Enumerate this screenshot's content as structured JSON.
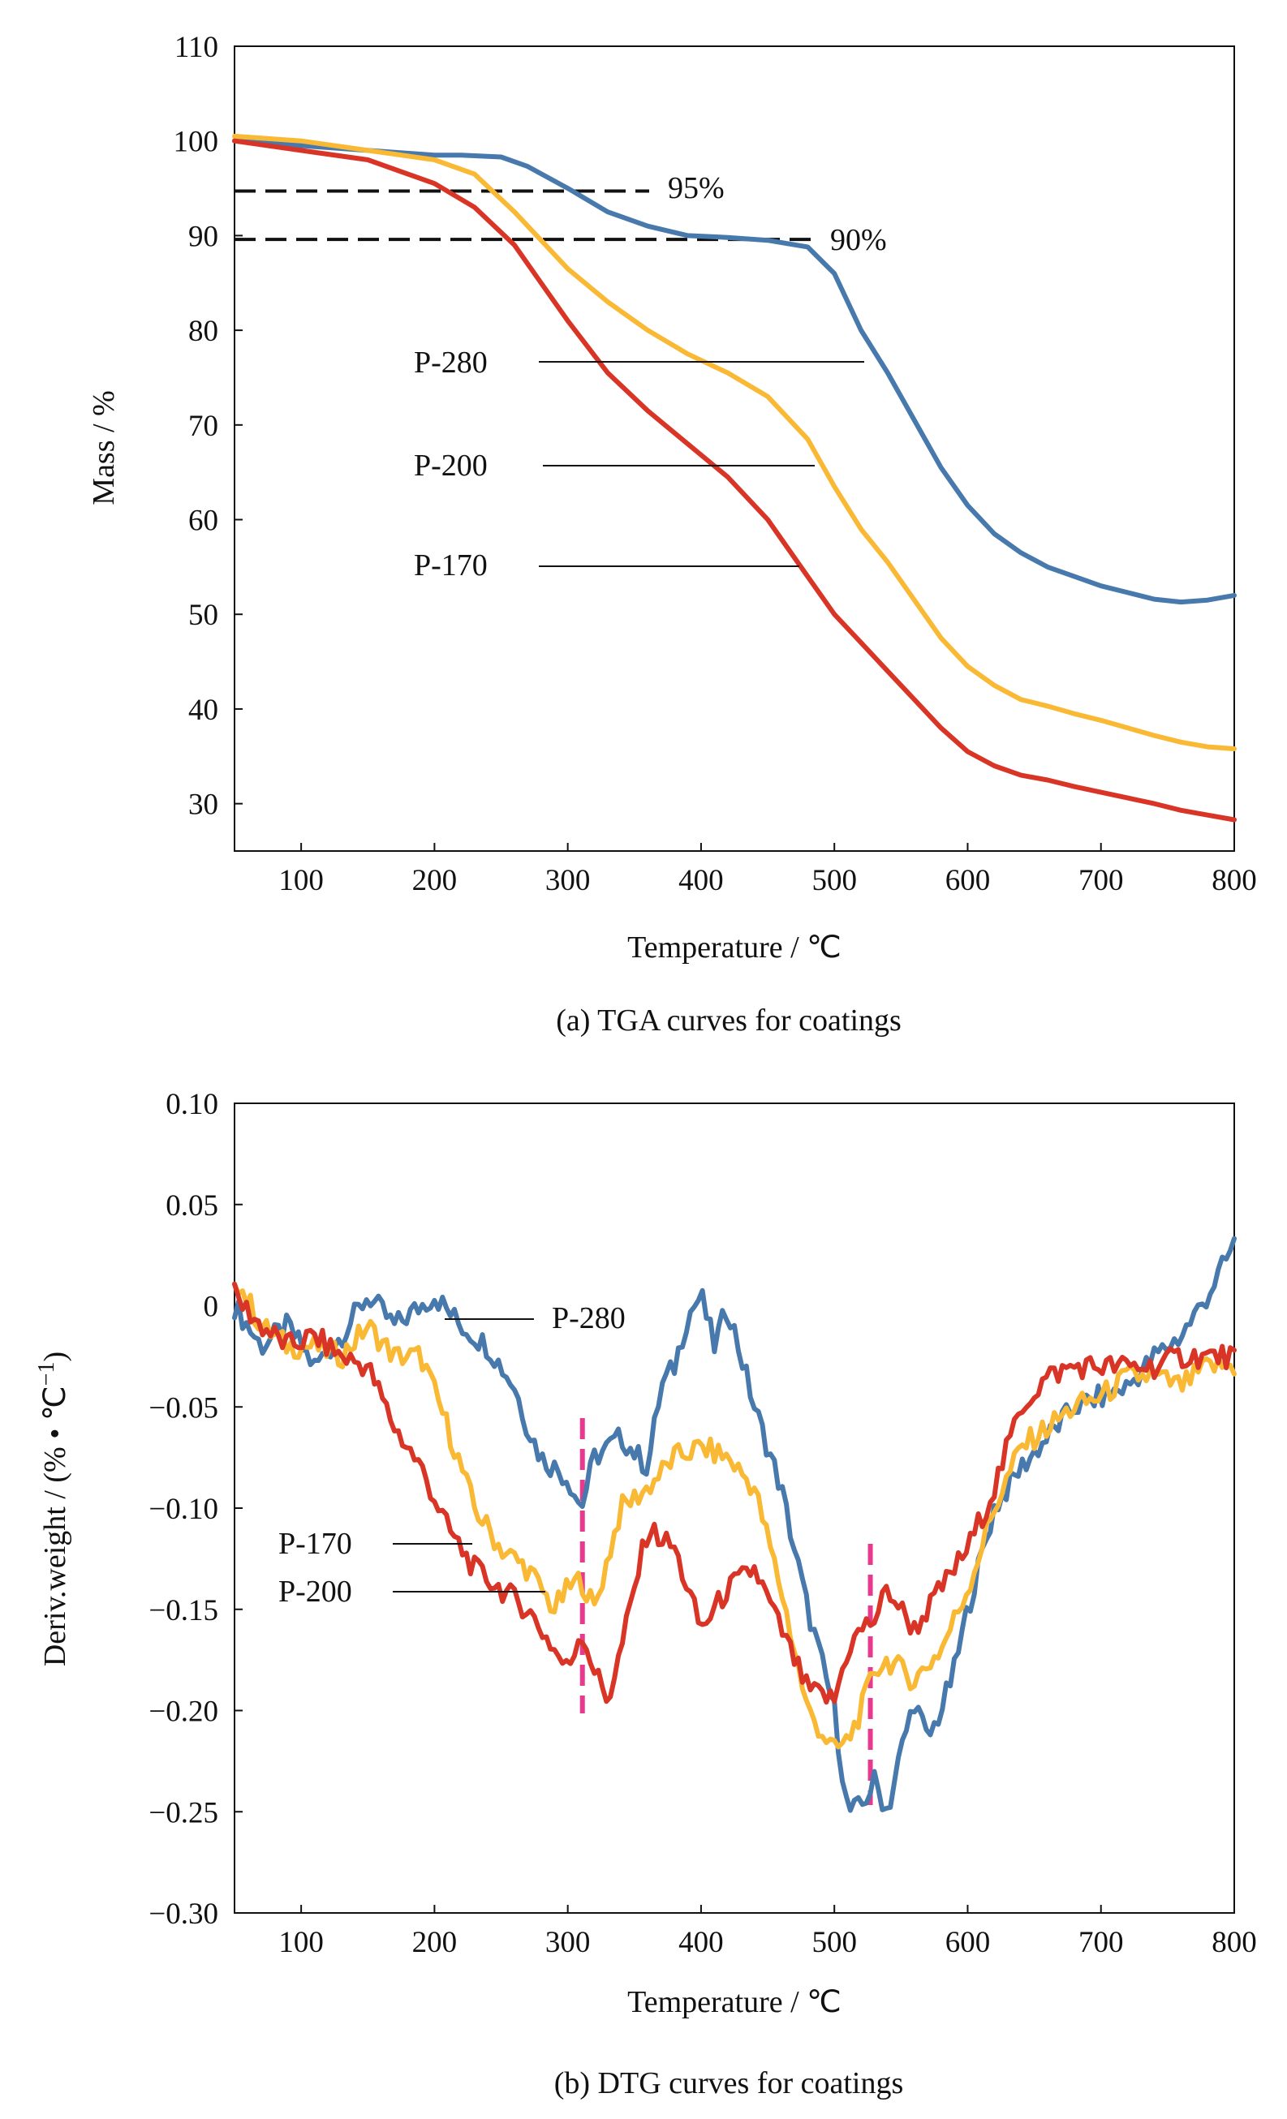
{
  "chart_data": [
    {
      "type": "line",
      "caption": "(a) TGA curves for coatings",
      "xlabel": "Temperature / ℃",
      "ylabel": "Mass / %",
      "xlim": [
        50,
        800
      ],
      "ylim": [
        25,
        110
      ],
      "xticks": [
        100,
        200,
        300,
        400,
        500,
        600,
        700,
        800
      ],
      "yticks": [
        30,
        40,
        50,
        60,
        70,
        80,
        90,
        100,
        110
      ],
      "grid": false,
      "series": [
        {
          "name": "P-280",
          "color": "#4879ad",
          "x": [
            50,
            100,
            150,
            200,
            220,
            250,
            270,
            300,
            330,
            360,
            390,
            420,
            450,
            480,
            500,
            520,
            540,
            560,
            580,
            600,
            620,
            640,
            660,
            680,
            700,
            720,
            740,
            760,
            780,
            800
          ],
          "y": [
            100,
            99.5,
            99,
            98.5,
            98.5,
            98.3,
            97.3,
            95,
            92.5,
            91,
            90,
            89.8,
            89.5,
            88.8,
            86,
            80,
            75.5,
            70.5,
            65.5,
            61.5,
            58.5,
            56.5,
            55,
            54,
            53,
            52.3,
            51.6,
            51.3,
            51.5,
            52
          ]
        },
        {
          "name": "P-200",
          "color": "#f9b935",
          "x": [
            50,
            100,
            150,
            200,
            230,
            260,
            280,
            300,
            330,
            360,
            390,
            420,
            450,
            480,
            500,
            520,
            540,
            560,
            580,
            600,
            620,
            640,
            660,
            680,
            700,
            720,
            740,
            760,
            780,
            800
          ],
          "y": [
            100.5,
            100,
            99,
            98,
            96.5,
            92.5,
            89.5,
            86.5,
            83,
            80,
            77.5,
            75.5,
            73,
            68.5,
            63.5,
            59,
            55.5,
            51.5,
            47.5,
            44.5,
            42.5,
            41,
            40.3,
            39.5,
            38.8,
            38,
            37.2,
            36.5,
            36,
            35.8
          ]
        },
        {
          "name": "P-170",
          "color": "#d93527",
          "x": [
            50,
            100,
            150,
            200,
            230,
            260,
            280,
            300,
            330,
            360,
            390,
            420,
            450,
            480,
            500,
            520,
            540,
            560,
            580,
            600,
            620,
            640,
            660,
            680,
            700,
            720,
            740,
            760,
            780,
            800
          ],
          "y": [
            100,
            99,
            98,
            95.5,
            93,
            89,
            85,
            81,
            75.5,
            71.5,
            68,
            64.5,
            60,
            54,
            50,
            47,
            44,
            41,
            38,
            35.5,
            34,
            33,
            32.5,
            31.8,
            31.2,
            30.6,
            30,
            29.3,
            28.8,
            28.3
          ]
        }
      ],
      "reference_lines": [
        {
          "label": "95%",
          "y": 94.7
        },
        {
          "label": "90%",
          "y": 89.6
        }
      ],
      "series_labels": [
        "P-280",
        "P-200",
        "P-170"
      ]
    },
    {
      "type": "line",
      "caption": "(b) DTG curves for coatings",
      "xlabel": "Temperature / ℃",
      "ylabel": "Deriv.weight / (% • ℃",
      "ylabel_sup": "−1",
      "ylabel_close": ")",
      "xlim": [
        50,
        800
      ],
      "ylim": [
        -0.3,
        0.1
      ],
      "xticks": [
        100,
        200,
        300,
        400,
        500,
        600,
        700,
        800
      ],
      "yticks": [
        0.1,
        0.05,
        0,
        -0.05,
        -0.1,
        -0.15,
        -0.2,
        -0.25,
        -0.3
      ],
      "ytick_labels": [
        "0.10",
        "0.05",
        "0",
        "−0.05",
        "−0.10",
        "−0.15",
        "−0.20",
        "−0.25",
        "−0.30"
      ],
      "grid": false,
      "marker_lines": [
        {
          "x": 311,
          "color": "#e8398e"
        },
        {
          "x": 527,
          "color": "#e8398e"
        }
      ],
      "series": [
        {
          "name": "P-280",
          "color": "#4879ad",
          "x": [
            50,
            70,
            90,
            110,
            130,
            150,
            170,
            200,
            220,
            240,
            260,
            270,
            280,
            300,
            310,
            320,
            340,
            360,
            370,
            380,
            390,
            400,
            410,
            420,
            430,
            440,
            460,
            480,
            500,
            510,
            520,
            530,
            540,
            550,
            560,
            570,
            580,
            590,
            600,
            620,
            640,
            660,
            680,
            700,
            720,
            740,
            760,
            780,
            800
          ],
          "y": [
            0,
            -0.02,
            -0.01,
            -0.03,
            -0.015,
            0.005,
            -0.01,
            0.005,
            -0.01,
            -0.02,
            -0.04,
            -0.06,
            -0.075,
            -0.085,
            -0.1,
            -0.075,
            -0.065,
            -0.08,
            -0.04,
            -0.03,
            -0.005,
            0.005,
            -0.02,
            0.0,
            -0.025,
            -0.05,
            -0.09,
            -0.15,
            -0.2,
            -0.25,
            -0.248,
            -0.235,
            -0.25,
            -0.22,
            -0.195,
            -0.215,
            -0.2,
            -0.18,
            -0.15,
            -0.1,
            -0.08,
            -0.065,
            -0.05,
            -0.045,
            -0.04,
            -0.025,
            -0.015,
            0.005,
            0.03
          ]
        },
        {
          "name": "P-200",
          "color": "#f9b935",
          "x": [
            50,
            70,
            90,
            110,
            130,
            150,
            170,
            190,
            210,
            230,
            250,
            270,
            290,
            300,
            310,
            320,
            340,
            360,
            380,
            400,
            420,
            440,
            460,
            480,
            490,
            500,
            510,
            520,
            530,
            540,
            560,
            580,
            600,
            620,
            640,
            660,
            680,
            700,
            720,
            740,
            760,
            780,
            800
          ],
          "y": [
            0.015,
            -0.01,
            -0.02,
            -0.02,
            -0.025,
            -0.01,
            -0.025,
            -0.025,
            -0.06,
            -0.1,
            -0.12,
            -0.13,
            -0.15,
            -0.14,
            -0.135,
            -0.15,
            -0.1,
            -0.09,
            -0.075,
            -0.07,
            -0.075,
            -0.09,
            -0.14,
            -0.2,
            -0.21,
            -0.22,
            -0.215,
            -0.2,
            -0.18,
            -0.175,
            -0.185,
            -0.17,
            -0.14,
            -0.1,
            -0.07,
            -0.06,
            -0.05,
            -0.045,
            -0.035,
            -0.035,
            -0.04,
            -0.03,
            -0.03
          ]
        },
        {
          "name": "P-170",
          "color": "#d93527",
          "x": [
            50,
            70,
            90,
            110,
            130,
            150,
            170,
            190,
            210,
            230,
            250,
            270,
            290,
            300,
            310,
            320,
            330,
            340,
            360,
            380,
            400,
            420,
            440,
            460,
            480,
            500,
            510,
            520,
            530,
            540,
            560,
            580,
            600,
            620,
            640,
            660,
            680,
            700,
            720,
            740,
            760,
            780,
            800
          ],
          "y": [
            0.005,
            -0.01,
            -0.02,
            -0.015,
            -0.025,
            -0.03,
            -0.06,
            -0.08,
            -0.11,
            -0.13,
            -0.14,
            -0.15,
            -0.17,
            -0.18,
            -0.16,
            -0.18,
            -0.195,
            -0.17,
            -0.11,
            -0.12,
            -0.16,
            -0.14,
            -0.13,
            -0.16,
            -0.19,
            -0.195,
            -0.17,
            -0.16,
            -0.155,
            -0.14,
            -0.16,
            -0.14,
            -0.12,
            -0.09,
            -0.05,
            -0.035,
            -0.03,
            -0.03,
            -0.03,
            -0.03,
            -0.025,
            -0.025,
            -0.025
          ]
        }
      ],
      "series_labels": [
        "P-280",
        "P-170",
        "P-200"
      ]
    }
  ]
}
